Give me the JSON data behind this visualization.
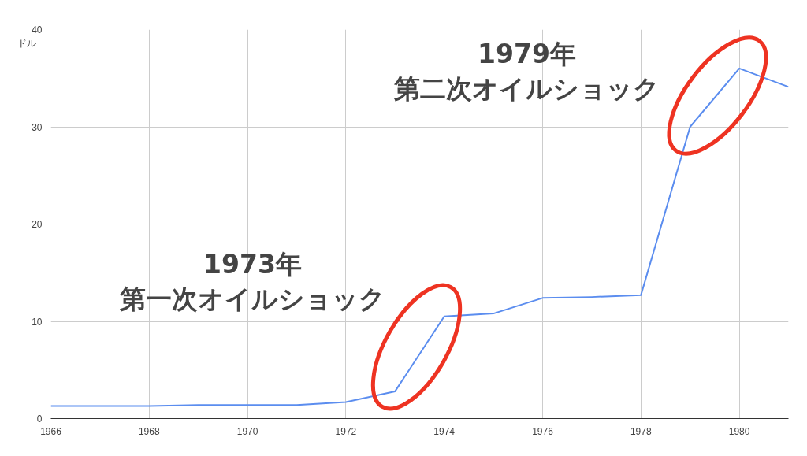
{
  "chart_data": {
    "type": "line",
    "ylabel": "ドル",
    "x": [
      1966,
      1967,
      1968,
      1969,
      1970,
      1971,
      1972,
      1973,
      1974,
      1975,
      1976,
      1977,
      1978,
      1979,
      1980,
      1981
    ],
    "series": [
      {
        "color": "#5b8def",
        "values": [
          1.3,
          1.3,
          1.3,
          1.4,
          1.4,
          1.4,
          1.7,
          2.8,
          10.5,
          10.8,
          12.4,
          12.5,
          12.7,
          30.0,
          36.0,
          34.1
        ]
      }
    ],
    "xlim": [
      1966,
      1981
    ],
    "xticks": [
      1966,
      1968,
      1970,
      1972,
      1974,
      1976,
      1978,
      1980
    ],
    "ylim": [
      0,
      40
    ],
    "yticks": [
      0,
      10,
      20,
      30,
      40
    ],
    "grid": true,
    "marker": "none",
    "line_style": "solid",
    "annotations": [
      "1973年",
      "第一次オイルショック",
      "1979年",
      "第二次オイルショック"
    ]
  }
}
